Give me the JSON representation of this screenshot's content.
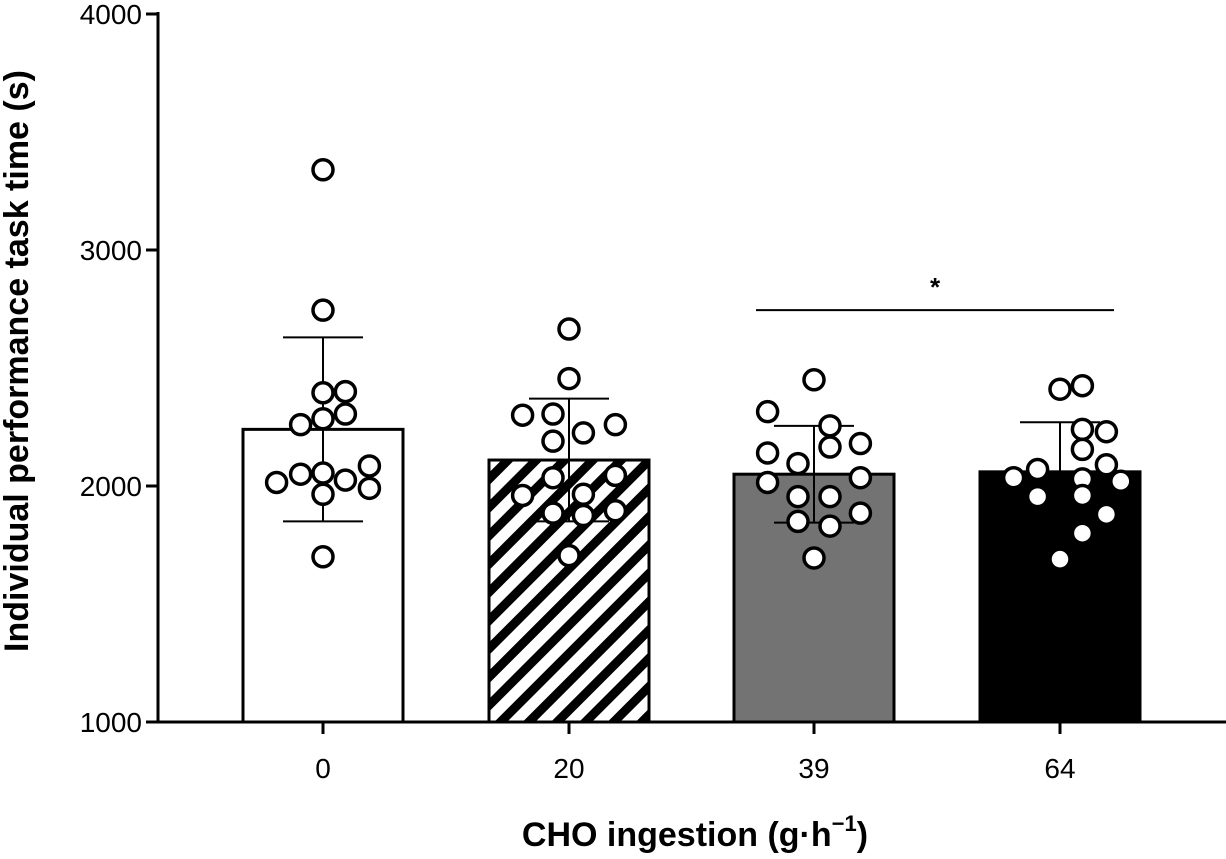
{
  "chart_data": {
    "type": "bar",
    "title": "",
    "xlabel": "CHO ingestion (g·h",
    "xlabel_sup": "−1",
    "xlabel_close": ")",
    "ylabel": "Individual performance task time (s)",
    "ylim": [
      1000,
      4000
    ],
    "yticks": [
      1000,
      2000,
      3000,
      4000
    ],
    "y_tick_labels": [
      "1000",
      "2000",
      "3000",
      "4000"
    ],
    "categories": [
      "0",
      "20",
      "39",
      "64"
    ],
    "bar_fills": [
      "white",
      "hatched",
      "#737373",
      "#000000"
    ],
    "point_fill": "#ffffff",
    "means": [
      2240,
      2110,
      2050,
      2060
    ],
    "sd": [
      390,
      260,
      205,
      210
    ],
    "points": [
      [
        {
          "x": -0.29,
          "y": 2015
        },
        {
          "x": -0.14,
          "y": 2050
        },
        {
          "x": -0.14,
          "y": 2260
        },
        {
          "x": 0.0,
          "y": 3340
        },
        {
          "x": 0.0,
          "y": 2745
        },
        {
          "x": 0.0,
          "y": 2395
        },
        {
          "x": 0.0,
          "y": 2285
        },
        {
          "x": 0.0,
          "y": 2055
        },
        {
          "x": 0.0,
          "y": 1965
        },
        {
          "x": 0.0,
          "y": 1700
        },
        {
          "x": 0.14,
          "y": 2400
        },
        {
          "x": 0.14,
          "y": 2305
        },
        {
          "x": 0.14,
          "y": 2025
        },
        {
          "x": 0.29,
          "y": 2085
        },
        {
          "x": 0.29,
          "y": 1990
        }
      ],
      [
        {
          "x": -0.29,
          "y": 2300
        },
        {
          "x": -0.29,
          "y": 1960
        },
        {
          "x": -0.1,
          "y": 2305
        },
        {
          "x": -0.1,
          "y": 2190
        },
        {
          "x": -0.1,
          "y": 2035
        },
        {
          "x": -0.1,
          "y": 1885
        },
        {
          "x": 0.0,
          "y": 2665
        },
        {
          "x": 0.0,
          "y": 2455
        },
        {
          "x": 0.0,
          "y": 1705
        },
        {
          "x": 0.09,
          "y": 2225
        },
        {
          "x": 0.09,
          "y": 1965
        },
        {
          "x": 0.09,
          "y": 1875
        },
        {
          "x": 0.29,
          "y": 2260
        },
        {
          "x": 0.29,
          "y": 2045
        },
        {
          "x": 0.29,
          "y": 1895
        }
      ],
      [
        {
          "x": -0.29,
          "y": 2315
        },
        {
          "x": -0.29,
          "y": 2140
        },
        {
          "x": -0.29,
          "y": 2015
        },
        {
          "x": -0.1,
          "y": 2095
        },
        {
          "x": -0.1,
          "y": 1955
        },
        {
          "x": -0.1,
          "y": 1850
        },
        {
          "x": 0.0,
          "y": 2450
        },
        {
          "x": 0.0,
          "y": 1695
        },
        {
          "x": 0.1,
          "y": 2255
        },
        {
          "x": 0.1,
          "y": 2165
        },
        {
          "x": 0.1,
          "y": 1955
        },
        {
          "x": 0.1,
          "y": 1830
        },
        {
          "x": 0.29,
          "y": 2180
        },
        {
          "x": 0.29,
          "y": 2035
        },
        {
          "x": 0.29,
          "y": 1885
        }
      ],
      [
        {
          "x": -0.29,
          "y": 2035
        },
        {
          "x": -0.14,
          "y": 2070
        },
        {
          "x": -0.14,
          "y": 1955
        },
        {
          "x": 0.0,
          "y": 2410
        },
        {
          "x": 0.0,
          "y": 1690
        },
        {
          "x": 0.14,
          "y": 2425
        },
        {
          "x": 0.14,
          "y": 2240
        },
        {
          "x": 0.14,
          "y": 2155
        },
        {
          "x": 0.14,
          "y": 2030
        },
        {
          "x": 0.14,
          "y": 1960
        },
        {
          "x": 0.14,
          "y": 1800
        },
        {
          "x": 0.29,
          "y": 2230
        },
        {
          "x": 0.29,
          "y": 2090
        },
        {
          "x": 0.29,
          "y": 1880
        },
        {
          "x": 0.38,
          "y": 2020
        }
      ]
    ],
    "significance": {
      "from": "39",
      "to": "64",
      "y": 2745,
      "label": "*"
    },
    "grid": false,
    "legend": "none"
  }
}
